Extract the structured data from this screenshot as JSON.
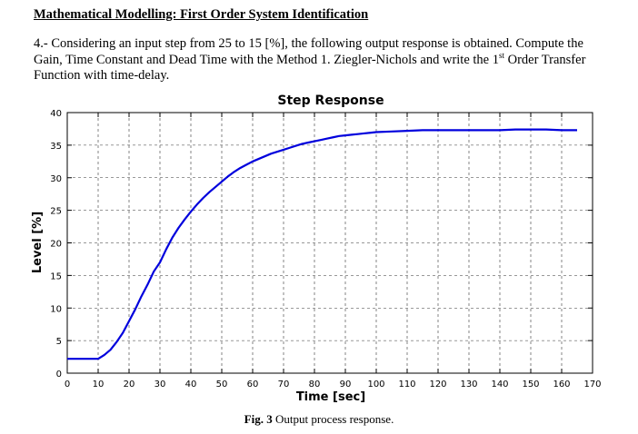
{
  "document": {
    "heading": "Mathematical Modelling: First Order System Identification",
    "problem_before_sup": "4.- Considering an input step from 25 to 15 [%], the following output response is obtained. Compute the Gain, Time Constant and Dead Time with the Method 1. Ziegler-Nichols and write the 1",
    "problem_sup": "st",
    "problem_after_sup": " Order Transfer Function with time-delay.",
    "caption_label": "Fig. 3",
    "caption_text": " Output process response."
  },
  "chart_data": {
    "type": "line",
    "title": "Step Response",
    "xlabel": "Time [sec]",
    "ylabel": "Level [%]",
    "xlim": [
      0,
      170
    ],
    "ylim": [
      0,
      40
    ],
    "xticks": [
      0,
      10,
      20,
      30,
      40,
      50,
      60,
      70,
      80,
      90,
      100,
      110,
      120,
      130,
      140,
      150,
      160,
      170
    ],
    "yticks": [
      0,
      5,
      10,
      15,
      20,
      25,
      30,
      35,
      40
    ],
    "grid": true,
    "line_color": "#0000dd",
    "series": [
      {
        "x": [
          0,
          2,
          4,
          6,
          8,
          10,
          12,
          13,
          14,
          16,
          18,
          20,
          22,
          24,
          26,
          28,
          30,
          32,
          34,
          36,
          38,
          40,
          42,
          44,
          46,
          48,
          50,
          52,
          54,
          56,
          58,
          60,
          62,
          64,
          66,
          68,
          70,
          72,
          74,
          76,
          78,
          80,
          82,
          84,
          86,
          88,
          90,
          92,
          94,
          96,
          98,
          100,
          105,
          110,
          115,
          120,
          125,
          130,
          135,
          140,
          145,
          150,
          155,
          160,
          165
        ],
        "y": [
          2.2,
          2.2,
          2.2,
          2.2,
          2.2,
          2.2,
          2.8,
          3.2,
          3.6,
          4.8,
          6.2,
          8.0,
          9.8,
          11.8,
          13.6,
          15.6,
          17.0,
          19.0,
          20.8,
          22.3,
          23.6,
          24.8,
          25.9,
          26.9,
          27.8,
          28.6,
          29.4,
          30.2,
          30.9,
          31.5,
          32.0,
          32.5,
          32.9,
          33.3,
          33.7,
          34.0,
          34.3,
          34.6,
          34.9,
          35.2,
          35.4,
          35.6,
          35.8,
          36.0,
          36.2,
          36.4,
          36.5,
          36.6,
          36.7,
          36.8,
          36.9,
          37.0,
          37.1,
          37.2,
          37.3,
          37.3,
          37.3,
          37.3,
          37.3,
          37.3,
          37.4,
          37.4,
          37.4,
          37.3,
          37.3
        ]
      }
    ]
  }
}
